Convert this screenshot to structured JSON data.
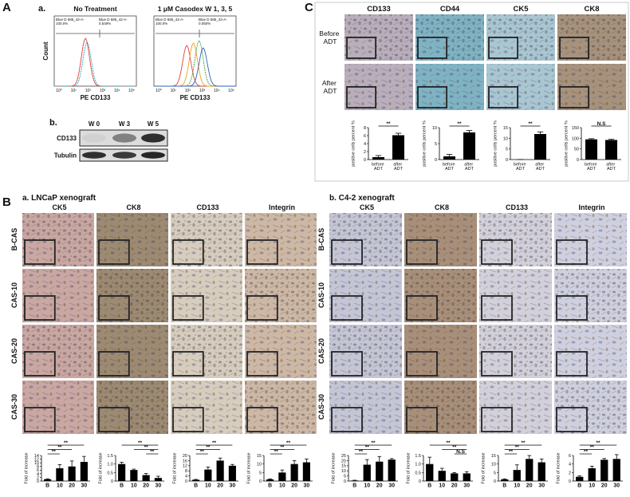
{
  "panel_a": {
    "label": "A",
    "sub_a": "a.",
    "histograms": [
      {
        "title": "No Treatment",
        "gate_left": [
          "Blue D 585_42-A-",
          "100.0%"
        ],
        "gate_right": [
          "Blue D 585_42-A-",
          "0.549%"
        ]
      },
      {
        "title": "1 μM Casodex W 1, 3, 5",
        "gate_left": [
          "Blue D 585_42-A-",
          "100.0%"
        ],
        "gate_right": [
          "Blue D 585_42-A-",
          "0.050%"
        ]
      }
    ],
    "y_label": "Count",
    "x_label": "PE CD133",
    "x_ticks": [
      "10⁰",
      "10¹",
      "10²",
      "10³",
      "10⁴",
      "10⁵"
    ],
    "sub_b": "b.",
    "blot": {
      "lanes": [
        "W 0",
        "W 3",
        "W 5"
      ],
      "rows": [
        "CD133",
        "Tubulin"
      ]
    }
  },
  "panel_b": {
    "label": "B",
    "groups": [
      {
        "title": "a. LNCaP xenograft",
        "stains": [
          "CK5",
          "CK8",
          "CD133",
          "Integrin"
        ],
        "rows": [
          "B-CAS",
          "CAS-10",
          "CAS-20",
          "CAS-30"
        ],
        "charts": [
          {
            "y_label": "Fold of increase",
            "categories": [
              "B",
              "10",
              "20",
              "30"
            ],
            "values": [
              1,
              7,
              8,
              10.5
            ],
            "errors": [
              0.2,
              2,
              3,
              3
            ],
            "ylim": [
              0,
              14
            ],
            "yticks": [
              0,
              2,
              4,
              6,
              8,
              10,
              12,
              14
            ],
            "brackets": [
              {
                "label": "**",
                "between": [
                  "B",
                  "10"
                ]
              },
              {
                "label": "**",
                "between": [
                  "B",
                  "20"
                ]
              },
              {
                "label": "**",
                "between": [
                  "B",
                  "30"
                ]
              }
            ]
          },
          {
            "y_label": "Fold of increase",
            "categories": [
              "B",
              "10",
              "20",
              "30"
            ],
            "values": [
              1,
              0.65,
              0.35,
              0.18
            ],
            "errors": [
              0.1,
              0.05,
              0.1,
              0.1
            ],
            "ylim": [
              0,
              1.5
            ],
            "yticks": [
              0,
              0.5,
              {
                "value": 1,
                "label": "1.0"
              },
              1.5
            ],
            "brackets": [
              {
                "label": "**",
                "between": [
                  "20",
                  "30"
                ]
              },
              {
                "label": "**",
                "between": [
                  "10",
                  "30"
                ]
              },
              {
                "label": "**",
                "between": [
                  "B",
                  "30"
                ]
              }
            ]
          },
          {
            "y_label": "Fold of increase",
            "categories": [
              "B",
              "10",
              "20",
              "30"
            ],
            "values": [
              1,
              9,
              16,
              12
            ],
            "errors": [
              0.3,
              2,
              2,
              1
            ],
            "ylim": [
              0,
              20
            ],
            "yticks": [
              0,
              4,
              8,
              12,
              16,
              20
            ],
            "brackets": [
              {
                "label": "**",
                "between": [
                  "B",
                  "10"
                ]
              },
              {
                "label": "**",
                "between": [
                  "B",
                  "20"
                ]
              },
              {
                "label": "**",
                "between": [
                  "B",
                  "30"
                ]
              }
            ]
          },
          {
            "y_label": "Fold of increase",
            "categories": [
              "B",
              "10",
              "20",
              "30"
            ],
            "values": [
              1,
              5,
              10,
              11
            ],
            "errors": [
              0.3,
              1.5,
              2,
              2
            ],
            "ylim": [
              0,
              15
            ],
            "yticks": [
              0,
              5,
              10,
              15
            ],
            "brackets": [
              {
                "label": "**",
                "between": [
                  "B",
                  "10"
                ]
              },
              {
                "label": "**",
                "between": [
                  "B",
                  "20"
                ]
              },
              {
                "label": "**",
                "between": [
                  "B",
                  "30"
                ]
              }
            ]
          }
        ]
      },
      {
        "title": "b. C4-2 xenograft",
        "stains": [
          "CK5",
          "CK8",
          "CD133",
          "Integrin"
        ],
        "rows": [
          "B-CAS",
          "CAS-10",
          "CAS-20",
          "CAS-30"
        ],
        "charts": [
          {
            "y_label": "Fold of increase",
            "categories": [
              "B",
              "10",
              "20",
              "30"
            ],
            "values": [
              0.5,
              16,
              19,
              21
            ],
            "errors": [
              0.3,
              5,
              5,
              1
            ],
            "ylim": [
              0,
              25
            ],
            "yticks": [
              0,
              5,
              10,
              15,
              20,
              25
            ],
            "brackets": [
              {
                "label": "**",
                "between": [
                  "B",
                  "10"
                ]
              },
              {
                "label": "**",
                "between": [
                  "B",
                  "20"
                ]
              },
              {
                "label": "**",
                "between": [
                  "B",
                  "30"
                ]
              }
            ]
          },
          {
            "y_label": "Fold of increase",
            "categories": [
              "B",
              "10",
              "20",
              "30"
            ],
            "values": [
              1,
              0.6,
              0.45,
              0.45
            ],
            "errors": [
              0.4,
              0.15,
              0.05,
              0.1
            ],
            "ylim": [
              0,
              1.5
            ],
            "yticks": [
              0,
              0.5,
              {
                "value": 1,
                "label": "1.0"
              },
              1.5
            ],
            "brackets": [
              {
                "label": "N.S",
                "between": [
                  "20",
                  "30"
                ]
              },
              {
                "label": "**",
                "between": [
                  "10",
                  "30"
                ]
              },
              {
                "label": "**",
                "between": [
                  "B",
                  "30"
                ]
              }
            ]
          },
          {
            "y_label": "Fold of increase",
            "categories": [
              "B",
              "10",
              "20",
              "30"
            ],
            "values": [
              1,
              6.5,
              13,
              11
            ],
            "errors": [
              0.3,
              3,
              2,
              2
            ],
            "ylim": [
              0,
              15
            ],
            "yticks": [
              0,
              5,
              10,
              15
            ],
            "brackets": [
              {
                "label": "**",
                "between": [
                  "B",
                  "10"
                ]
              },
              {
                "label": "**",
                "between": [
                  "B",
                  "20"
                ]
              },
              {
                "label": "**",
                "between": [
                  "B",
                  "30"
                ]
              }
            ]
          },
          {
            "y_label": "Fold of increase",
            "categories": [
              "B",
              "10",
              "20",
              "30"
            ],
            "values": [
              1,
              3,
              5,
              5.2
            ],
            "errors": [
              0.2,
              0.5,
              0.3,
              1
            ],
            "ylim": [
              0,
              6
            ],
            "yticks": [
              0,
              2,
              4,
              6
            ],
            "brackets": [
              {
                "label": "**",
                "between": [
                  "B",
                  "10"
                ]
              },
              {
                "label": "**",
                "between": [
                  "B",
                  "20"
                ]
              },
              {
                "label": "**",
                "between": [
                  "B",
                  "30"
                ]
              }
            ]
          }
        ]
      }
    ]
  },
  "panel_c": {
    "label": "C",
    "stains": [
      "CD133",
      "CD44",
      "CK5",
      "CK8"
    ],
    "rows": [
      "Before ADT",
      "After ADT"
    ],
    "charts": [
      {
        "y_label": "positive cells percent %",
        "categories": [
          "before ADT",
          "after ADT"
        ],
        "values": [
          0.6,
          6.1
        ],
        "errors": [
          0.4,
          0.5
        ],
        "ylim": [
          0,
          8
        ],
        "yticks": [
          0,
          2,
          4,
          6,
          8
        ],
        "brackets": [
          {
            "label": "**",
            "between": [
              "before ADT",
              "after ADT"
            ]
          }
        ]
      },
      {
        "y_label": "positive cells percent %",
        "categories": [
          "before ADT",
          "after ADT"
        ],
        "values": [
          1,
          8.5
        ],
        "errors": [
          0.6,
          0.6
        ],
        "ylim": [
          0,
          10
        ],
        "yticks": [
          0,
          5,
          10
        ],
        "brackets": [
          {
            "label": "**",
            "between": [
              "before ADT",
              "after ADT"
            ]
          }
        ]
      },
      {
        "y_label": "positive cells percent %",
        "categories": [
          "before ADT",
          "after ADT"
        ],
        "values": [
          0,
          12
        ],
        "errors": [
          0,
          1
        ],
        "ylim": [
          0,
          15
        ],
        "yticks": [
          0,
          5,
          10,
          15
        ],
        "brackets": [
          {
            "label": "**",
            "between": [
              "before ADT",
              "after ADT"
            ]
          }
        ]
      },
      {
        "y_label": "positive cells percent %",
        "categories": [
          "before ADT",
          "after ADT"
        ],
        "values": [
          95,
          92
        ],
        "errors": [
          3,
          3
        ],
        "ylim": [
          0,
          150
        ],
        "yticks": [
          0,
          50,
          100,
          150
        ],
        "brackets": [
          {
            "label": "N.S",
            "between": [
              "before ADT",
              "after ADT"
            ]
          }
        ]
      }
    ]
  }
}
